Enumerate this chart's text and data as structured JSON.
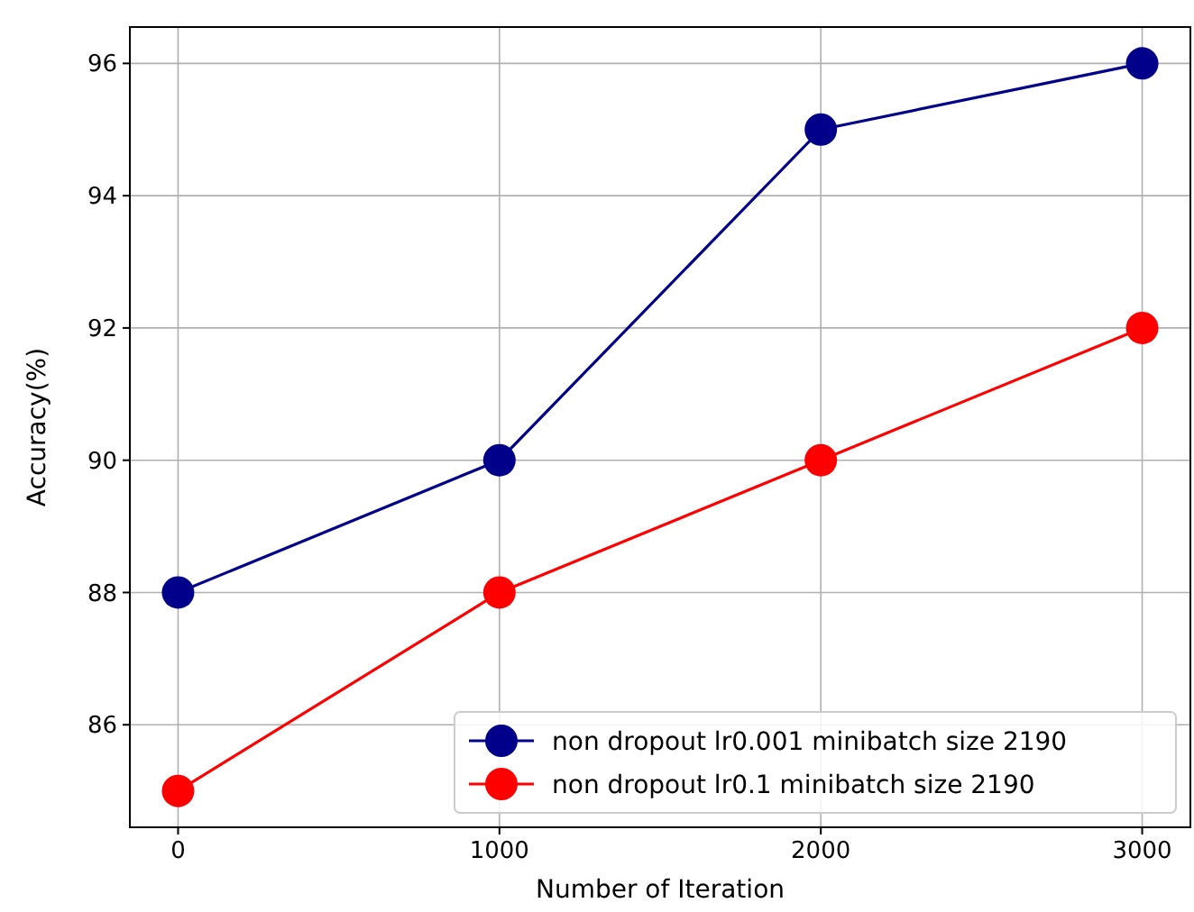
{
  "chart_data": {
    "type": "line",
    "xlabel": "Number of Iteration",
    "ylabel": "Accuracy(%)",
    "x": [
      0,
      1000,
      2000,
      3000
    ],
    "series": [
      {
        "name": "non dropout lr0.001 minibatch size 2190",
        "color": "#00008b",
        "values": [
          88,
          90,
          95,
          96
        ]
      },
      {
        "name": "non dropout lr0.1 minibatch size 2190",
        "color": "#ff0000",
        "values": [
          85,
          88,
          90,
          92
        ]
      }
    ],
    "xlim": [
      -150,
      3150
    ],
    "xticks": [
      0,
      1000,
      2000,
      3000
    ],
    "ylim": [
      84.45,
      96.55
    ],
    "yticks": [
      86,
      88,
      90,
      92,
      94,
      96
    ],
    "grid": true,
    "legend": "bottom right",
    "marker": "circle",
    "line_style": "solid"
  }
}
